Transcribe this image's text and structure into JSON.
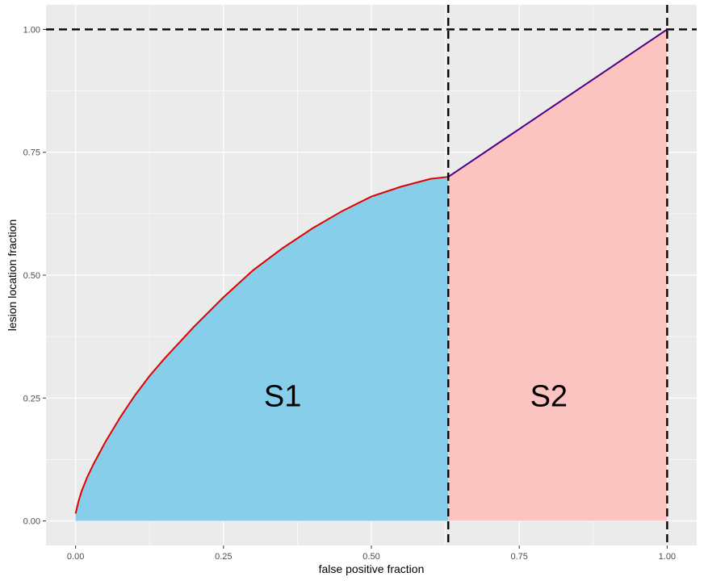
{
  "chart_data": {
    "type": "area",
    "xlabel": "false positive fraction",
    "ylabel": "lesion location fraction",
    "xlim": [
      -0.05,
      1.05
    ],
    "ylim": [
      -0.05,
      1.05
    ],
    "x_ticks": [
      0.0,
      0.25,
      0.5,
      0.75,
      1.0
    ],
    "x_tick_labels": [
      "0.00",
      "0.25",
      "0.50",
      "0.75",
      "1.00"
    ],
    "y_ticks": [
      0.0,
      0.25,
      0.5,
      0.75,
      1.0
    ],
    "y_tick_labels": [
      "0.00",
      "0.25",
      "0.50",
      "0.75",
      "1.00"
    ],
    "grid": true,
    "curve": {
      "x": [
        0.0,
        0.005,
        0.01,
        0.02,
        0.03,
        0.05,
        0.075,
        0.1,
        0.125,
        0.15,
        0.2,
        0.25,
        0.3,
        0.35,
        0.4,
        0.45,
        0.5,
        0.55,
        0.6,
        0.63
      ],
      "y": [
        0.015,
        0.04,
        0.06,
        0.09,
        0.115,
        0.16,
        0.21,
        0.255,
        0.295,
        0.33,
        0.395,
        0.455,
        0.51,
        0.555,
        0.595,
        0.63,
        0.66,
        0.68,
        0.696,
        0.7
      ]
    },
    "segment": {
      "x": [
        0.63,
        1.0
      ],
      "y": [
        0.7,
        1.0
      ]
    },
    "vlines": [
      0.63,
      1.0
    ],
    "hlines": [
      1.0
    ],
    "regions": [
      {
        "label": "S1",
        "label_x": 0.35,
        "label_y": 0.25
      },
      {
        "label": "S2",
        "label_x": 0.8,
        "label_y": 0.25
      }
    ],
    "colors": {
      "panel_bg": "#ebebeb",
      "grid": "#ffffff",
      "s1_fill": "#87ceeb",
      "s2_fill": "#fbc4c0",
      "curve": "#e00000",
      "segment": "#4b0082",
      "dashed": "#000000"
    }
  }
}
